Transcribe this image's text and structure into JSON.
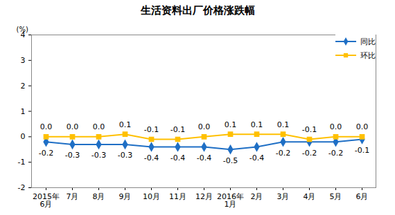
{
  "chart_data": {
    "type": "line",
    "title": "生活资料出厂价格涨跌幅",
    "y_label": "(%)",
    "categories": [
      "2015年\n6月",
      "7月",
      "8月",
      "9月",
      "10月",
      "11月",
      "12月",
      "2016年\n1月",
      "2月",
      "3月",
      "4月",
      "5月",
      "6月"
    ],
    "series": [
      {
        "name": "同比",
        "color": "#1f6fc5",
        "marker": "diamond",
        "values": [
          -0.2,
          -0.3,
          -0.3,
          -0.3,
          -0.4,
          -0.4,
          -0.4,
          -0.5,
          -0.4,
          -0.2,
          -0.2,
          -0.2,
          -0.1
        ],
        "value_labels": [
          "-0.2",
          "-0.3",
          "-0.3",
          "-0.3",
          "-0.4",
          "-0.4",
          "-0.4",
          "-0.5",
          "-0.4",
          "-0.2",
          "-0.2",
          "-0.2",
          "-0.1"
        ]
      },
      {
        "name": "环比",
        "color": "#ffc000",
        "marker": "square",
        "values": [
          0.0,
          0.0,
          0.0,
          0.1,
          -0.1,
          -0.1,
          0.0,
          0.1,
          0.1,
          0.1,
          -0.1,
          0.0,
          0.0
        ],
        "value_labels": [
          "0.0",
          "0.0",
          "0.0",
          "0.1",
          "-0.1",
          "-0.1",
          "0.0",
          "0.1",
          "0.1",
          "0.1",
          "-0.1",
          "0.0",
          "0.0"
        ]
      }
    ],
    "ylim": [
      -2,
      4
    ],
    "yticks": [
      -2,
      -1,
      0,
      1,
      2,
      3,
      4
    ],
    "grid": false,
    "legend": "top-right",
    "data_labels": true
  }
}
